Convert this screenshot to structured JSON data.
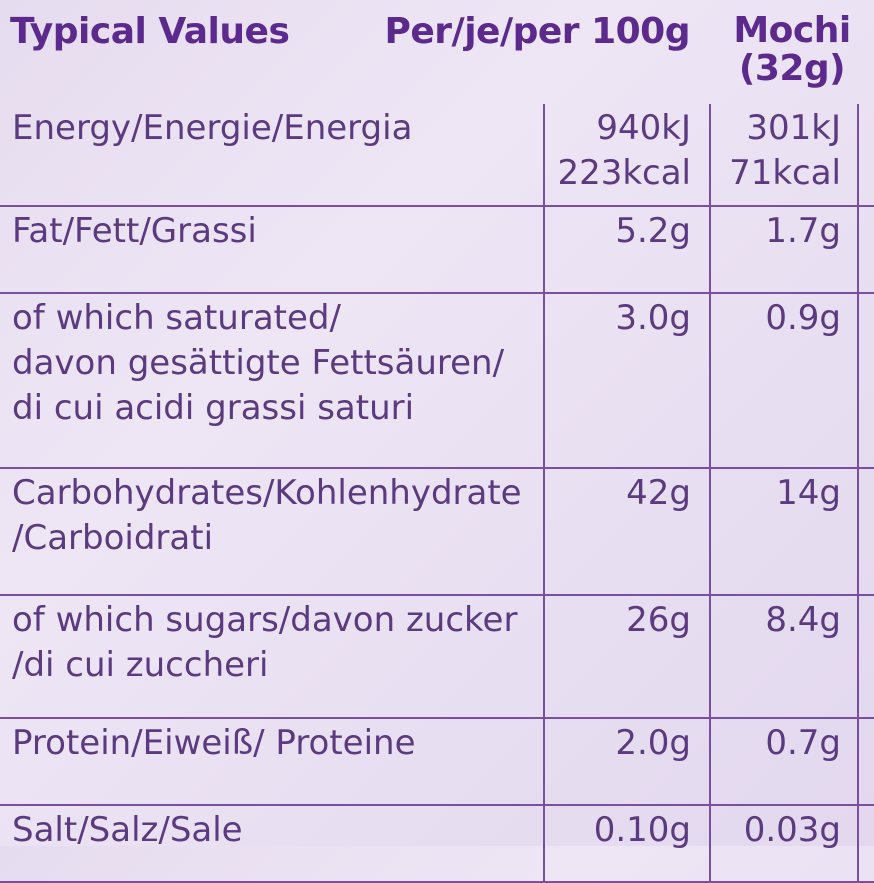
{
  "header": {
    "typical_values": "Typical Values",
    "per_100g": "Per/je/per 100g",
    "serving": "Mochi\n(32g)"
  },
  "rows": [
    {
      "name": "Energy/Energie/Energia",
      "per_100g": "940kJ\n223kcal",
      "per_serving": "301kJ\n71kcal"
    },
    {
      "name": "Fat/Fett/Grassi",
      "per_100g": "5.2g",
      "per_serving": "1.7g"
    },
    {
      "name": "of which saturated/\ndavon gesättigte Fettsäuren/\ndi cui acidi grassi saturi",
      "per_100g": "3.0g",
      "per_serving": "0.9g"
    },
    {
      "name": "Carbohydrates/Kohlenhydrate\n/Carboidrati",
      "per_100g": "42g",
      "per_serving": "14g"
    },
    {
      "name": "of which sugars/davon zucker\n/di cui zuccheri",
      "per_100g": "26g",
      "per_serving": "8.4g"
    },
    {
      "name": "Protein/Eiweiß/ Proteine",
      "per_100g": "2.0g",
      "per_serving": "0.7g"
    },
    {
      "name": "Salt/Salz/Sale",
      "per_100g": "0.10g",
      "per_serving": "0.03g"
    }
  ],
  "colors": {
    "heading": "#5b2a8c",
    "text": "#5b3a7f",
    "rule": "#7a4ea3",
    "background": "#ebe2f3"
  }
}
